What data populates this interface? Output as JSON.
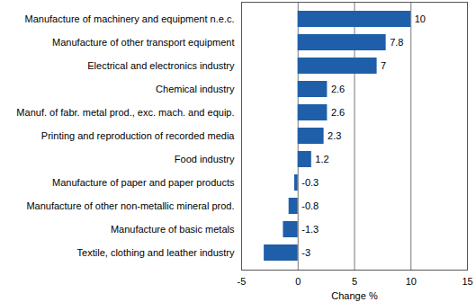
{
  "chart_data": {
    "type": "bar",
    "orientation": "horizontal",
    "categories": [
      "Manufacture of machinery and equipment n.e.c.",
      "Manufacture of other transport equipment",
      "Electrical and electronics industry",
      "Chemical industry",
      "Manuf. of fabr. metal prod., exc. mach. and equip.",
      "Printing and reproduction of recorded media",
      "Food industry",
      "Manufacture of paper and paper products",
      "Manufacture of other non-metallic mineral prod.",
      "Manufacture of basic metals",
      "Textile, clothing and leather industry"
    ],
    "values": [
      10,
      7.8,
      7,
      2.6,
      2.6,
      2.3,
      1.2,
      -0.3,
      -0.8,
      -1.3,
      -3
    ],
    "color": "#1f5faa",
    "xlabel": "Change %",
    "xlim": [
      -5,
      15
    ],
    "xticks": [
      -5,
      0,
      5,
      10,
      15
    ],
    "grid": true,
    "data_labels": true
  }
}
